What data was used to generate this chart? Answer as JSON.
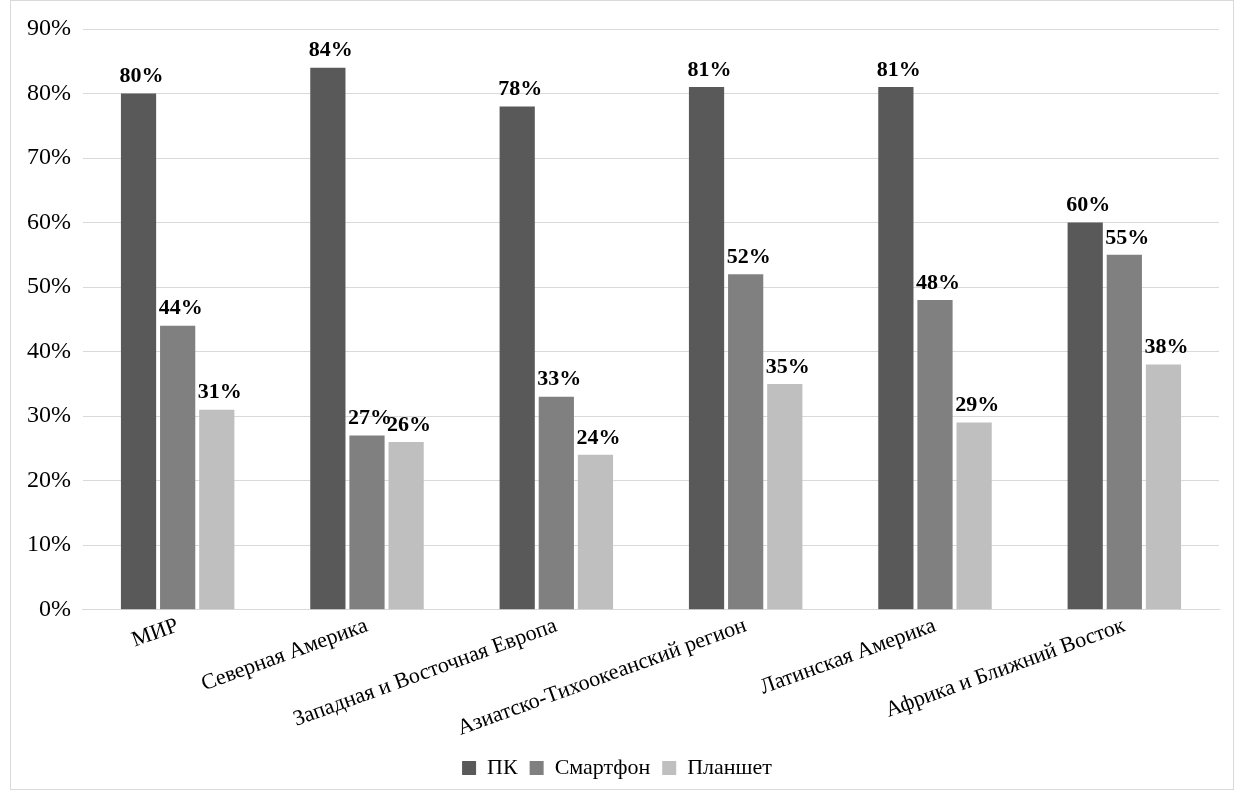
{
  "chart_data": {
    "type": "bar",
    "categories": [
      "МИР",
      "Северная Америка",
      "Западная и Восточная Европа",
      "Азиатско-Тихоокеанский регион",
      "Латинская Америка",
      "Африка и Ближний Восток"
    ],
    "series": [
      {
        "name": "ПК",
        "color": "#595959",
        "values": [
          80,
          84,
          78,
          81,
          81,
          60
        ],
        "value_labels": [
          "80%",
          "84%",
          "78%",
          "81%",
          "81%",
          "60%"
        ]
      },
      {
        "name": "Смартфон",
        "color": "#808080",
        "values": [
          44,
          27,
          33,
          52,
          48,
          55
        ],
        "value_labels": [
          "44%",
          "27%",
          "33%",
          "52%",
          "48%",
          "55%"
        ]
      },
      {
        "name": "Планшет",
        "color": "#bfbfbf",
        "values": [
          31,
          26,
          24,
          35,
          29,
          38
        ],
        "value_labels": [
          "31%",
          "26%",
          "24%",
          "35%",
          "29%",
          "38%"
        ]
      }
    ],
    "ylim": [
      0,
      90
    ],
    "yticks": [
      {
        "value": 0,
        "label": "0%"
      },
      {
        "value": 10,
        "label": "10%"
      },
      {
        "value": 20,
        "label": "20%"
      },
      {
        "value": 30,
        "label": "30%"
      },
      {
        "value": 40,
        "label": "40%"
      },
      {
        "value": 50,
        "label": "50%"
      },
      {
        "value": 60,
        "label": "60%"
      },
      {
        "value": 70,
        "label": "70%"
      },
      {
        "value": 80,
        "label": "80%"
      },
      {
        "value": 90,
        "label": "90%"
      }
    ],
    "grid": "y",
    "legend": "bottom"
  }
}
